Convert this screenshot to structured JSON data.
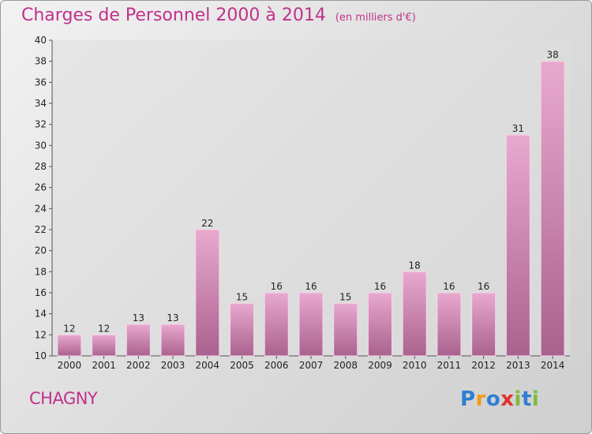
{
  "title": "Charges de Personnel 2000 à 2014",
  "subtitle": "(en milliers d'€)",
  "city": "CHAGNY",
  "logo": {
    "parts": [
      "P",
      "r",
      "o",
      "x",
      "i",
      "t",
      "i"
    ]
  },
  "colors": {
    "accent": "#c0318a",
    "bar_light": "#e9a9cf",
    "bar_dark": "#a9628e"
  },
  "chart_data": {
    "type": "bar",
    "categories": [
      "2000",
      "2001",
      "2002",
      "2003",
      "2004",
      "2005",
      "2006",
      "2007",
      "2008",
      "2009",
      "2010",
      "2011",
      "2012",
      "2013",
      "2014"
    ],
    "values": [
      12,
      12,
      13,
      13,
      22,
      15,
      16,
      16,
      15,
      16,
      18,
      16,
      16,
      31,
      38
    ],
    "title": "Charges de Personnel 2000 à 2014",
    "subtitle": "(en milliers d'€)",
    "xlabel": "",
    "ylabel": "",
    "ylim": [
      10,
      40
    ],
    "yticks": [
      10,
      12,
      14,
      16,
      18,
      20,
      22,
      24,
      26,
      28,
      30,
      32,
      34,
      36,
      38,
      40
    ],
    "grid": false,
    "legend": "none"
  }
}
